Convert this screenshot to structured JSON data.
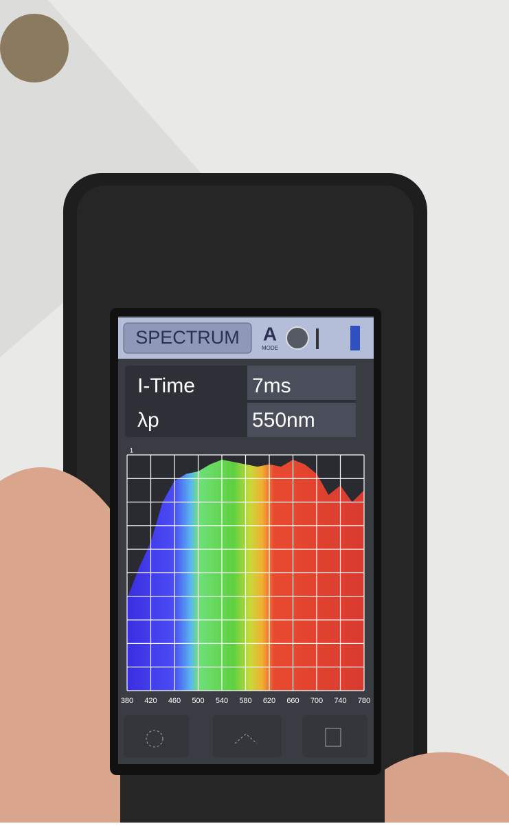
{
  "header": {
    "title": "SPECTRUM",
    "mode": "A",
    "mode_label": "MODE"
  },
  "rows": [
    {
      "label": "I-Time",
      "value": "7ms"
    },
    {
      "label": "λp",
      "value": "550nm"
    }
  ],
  "chart_data": {
    "type": "area",
    "x": [
      380,
      400,
      420,
      440,
      460,
      480,
      500,
      520,
      540,
      560,
      580,
      600,
      620,
      640,
      660,
      680,
      700,
      720,
      740,
      760,
      780
    ],
    "values": [
      0.39,
      0.52,
      0.63,
      0.8,
      0.89,
      0.92,
      0.93,
      0.96,
      0.98,
      0.97,
      0.96,
      0.95,
      0.96,
      0.95,
      0.98,
      0.96,
      0.92,
      0.83,
      0.87,
      0.8,
      0.85
    ],
    "xlim": [
      380,
      780
    ],
    "xticks": [
      380,
      420,
      460,
      500,
      540,
      580,
      620,
      660,
      700,
      740,
      780
    ],
    "ylim": [
      0,
      1
    ],
    "yticks": [
      1
    ],
    "grid": true
  }
}
